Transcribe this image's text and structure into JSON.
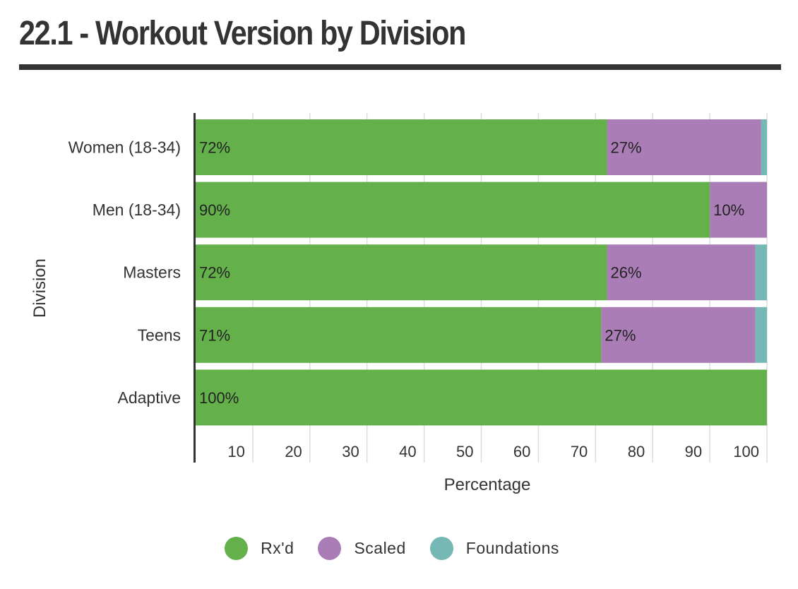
{
  "title": "22.1 - Workout Version by Division",
  "chart_data": {
    "type": "bar",
    "orientation": "horizontal",
    "stacked": true,
    "categories": [
      "Women (18-34)",
      "Men (18-34)",
      "Masters",
      "Teens",
      "Adaptive"
    ],
    "series": [
      {
        "name": "Rx'd",
        "color": "#64b14b",
        "values": [
          72,
          90,
          72,
          71,
          100
        ],
        "labels": [
          "72%",
          "90%",
          "72%",
          "71%",
          "100%"
        ]
      },
      {
        "name": "Scaled",
        "color": "#aa7db6",
        "values": [
          27,
          10,
          26,
          27,
          0
        ],
        "labels": [
          "27%",
          "10%",
          "26%",
          "27%",
          ""
        ]
      },
      {
        "name": "Foundations",
        "color": "#76b8b3",
        "values": [
          1,
          0,
          2,
          2,
          0
        ],
        "labels": [
          "",
          "",
          "",
          "",
          ""
        ]
      }
    ],
    "xlabel": "Percentage",
    "ylabel": "Division",
    "xlim": [
      0,
      100
    ],
    "xticks": [
      10,
      20,
      30,
      40,
      50,
      60,
      70,
      80,
      90,
      100
    ],
    "xtick_labels": [
      "10",
      "20",
      "30",
      "40",
      "50",
      "60",
      "70",
      "80",
      "90",
      "100"
    ],
    "grid": true,
    "legend_position": "bottom"
  }
}
